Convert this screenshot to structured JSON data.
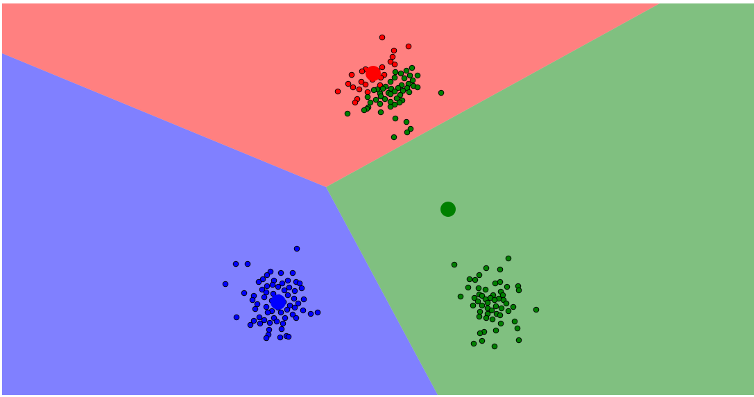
{
  "chart_data": {
    "type": "scatter",
    "title": "",
    "xlabel": "",
    "ylabel": "",
    "grid": false,
    "legend": "none",
    "axes_visible": false,
    "xlim": [
      0,
      1084
    ],
    "ylim": [
      -565,
      0
    ],
    "region_colors": {
      "red": "#ff8080",
      "green": "#80c080",
      "blue": "#8080ff"
    },
    "regions": [
      {
        "name": "red",
        "polygon": [
          [
            0,
            0
          ],
          [
            948,
            0
          ],
          [
            467,
            -265
          ],
          [
            0,
            -72
          ]
        ]
      },
      {
        "name": "green",
        "polygon": [
          [
            948,
            0
          ],
          [
            1084,
            0
          ],
          [
            1084,
            -565
          ],
          [
            628,
            -565
          ],
          [
            467,
            -265
          ]
        ]
      },
      {
        "name": "blue",
        "polygon": [
          [
            0,
            -72
          ],
          [
            467,
            -265
          ],
          [
            628,
            -565
          ],
          [
            0,
            -565
          ]
        ]
      }
    ],
    "centroids": [
      {
        "cluster": "red",
        "color": "#ff0000",
        "x": 535,
        "y": -101
      },
      {
        "cluster": "green",
        "color": "#008000",
        "x": 643,
        "y": -297
      },
      {
        "cluster": "blue",
        "color": "#0000ff",
        "x": 398,
        "y": -431
      }
    ],
    "series": [
      {
        "cluster": "red",
        "color": "#ff0000",
        "points": [
          [
            548,
            -49
          ],
          [
            586,
            -62
          ],
          [
            565,
            -68
          ],
          [
            563,
            -77
          ],
          [
            560,
            -84
          ],
          [
            566,
            -88
          ],
          [
            548,
            -92
          ],
          [
            524,
            -95
          ],
          [
            541,
            -97
          ],
          [
            519,
            -98
          ],
          [
            531,
            -101
          ],
          [
            504,
            -103
          ],
          [
            551,
            -103
          ],
          [
            546,
            -107
          ],
          [
            534,
            -110
          ],
          [
            518,
            -113
          ],
          [
            499,
            -116
          ],
          [
            524,
            -117
          ],
          [
            545,
            -118
          ],
          [
            506,
            -121
          ],
          [
            515,
            -124
          ],
          [
            484,
            -127
          ],
          [
            527,
            -128
          ],
          [
            512,
            -138
          ],
          [
            509,
            -143
          ]
        ]
      },
      {
        "cluster": "green",
        "color": "#008000",
        "points": [
          [
            591,
            -93
          ],
          [
            583,
            -97
          ],
          [
            567,
            -99
          ],
          [
            575,
            -101
          ],
          [
            588,
            -104
          ],
          [
            599,
            -104
          ],
          [
            566,
            -107
          ],
          [
            580,
            -108
          ],
          [
            592,
            -111
          ],
          [
            560,
            -113
          ],
          [
            586,
            -116
          ],
          [
            576,
            -118
          ],
          [
            593,
            -119
          ],
          [
            553,
            -120
          ],
          [
            599,
            -121
          ],
          [
            584,
            -122
          ],
          [
            571,
            -122
          ],
          [
            561,
            -123
          ],
          [
            549,
            -123
          ],
          [
            541,
            -124
          ],
          [
            536,
            -125
          ],
          [
            578,
            -126
          ],
          [
            566,
            -127
          ],
          [
            587,
            -128
          ],
          [
            633,
            -129
          ],
          [
            557,
            -129
          ],
          [
            545,
            -130
          ],
          [
            560,
            -131
          ],
          [
            574,
            -132
          ],
          [
            546,
            -134
          ],
          [
            527,
            -135
          ],
          [
            569,
            -137
          ],
          [
            552,
            -138
          ],
          [
            539,
            -139
          ],
          [
            577,
            -140
          ],
          [
            560,
            -142
          ],
          [
            531,
            -143
          ],
          [
            573,
            -143
          ],
          [
            545,
            -145
          ],
          [
            566,
            -146
          ],
          [
            560,
            -149
          ],
          [
            528,
            -150
          ],
          [
            526,
            -152
          ],
          [
            522,
            -154
          ],
          [
            546,
            -157
          ],
          [
            498,
            -159
          ],
          [
            567,
            -166
          ],
          [
            583,
            -171
          ],
          [
            589,
            -181
          ],
          [
            584,
            -186
          ],
          [
            565,
            -193
          ],
          [
            730,
            -368
          ],
          [
            652,
            -377
          ],
          [
            698,
            -382
          ],
          [
            718,
            -384
          ],
          [
            688,
            -392
          ],
          [
            674,
            -398
          ],
          [
            682,
            -399
          ],
          [
            718,
            -402
          ],
          [
            711,
            -404
          ],
          [
            744,
            -408
          ],
          [
            728,
            -409
          ],
          [
            672,
            -410
          ],
          [
            687,
            -411
          ],
          [
            697,
            -413
          ],
          [
            745,
            -414
          ],
          [
            719,
            -416
          ],
          [
            688,
            -420
          ],
          [
            708,
            -421
          ],
          [
            722,
            -421
          ],
          [
            661,
            -423
          ],
          [
            692,
            -422
          ],
          [
            681,
            -425
          ],
          [
            704,
            -425
          ],
          [
            716,
            -426
          ],
          [
            697,
            -427
          ],
          [
            710,
            -428
          ],
          [
            723,
            -428
          ],
          [
            686,
            -430
          ],
          [
            700,
            -432
          ],
          [
            727,
            -433
          ],
          [
            679,
            -436
          ],
          [
            692,
            -436
          ],
          [
            712,
            -437
          ],
          [
            737,
            -438
          ],
          [
            700,
            -440
          ],
          [
            720,
            -440
          ],
          [
            770,
            -442
          ],
          [
            706,
            -443
          ],
          [
            730,
            -444
          ],
          [
            689,
            -445
          ],
          [
            700,
            -448
          ],
          [
            713,
            -448
          ],
          [
            718,
            -450
          ],
          [
            688,
            -452
          ],
          [
            698,
            -454
          ],
          [
            707,
            -456
          ],
          [
            739,
            -459
          ],
          [
            719,
            -462
          ],
          [
            743,
            -469
          ],
          [
            712,
            -472
          ],
          [
            695,
            -474
          ],
          [
            689,
            -476
          ],
          [
            745,
            -486
          ],
          [
            692,
            -487
          ],
          [
            680,
            -491
          ],
          [
            710,
            -495
          ]
        ]
      },
      {
        "cluster": "blue",
        "color": "#0000ff",
        "points": [
          [
            425,
            -354
          ],
          [
            337,
            -376
          ],
          [
            354,
            -376
          ],
          [
            387,
            -387
          ],
          [
            402,
            -389
          ],
          [
            419,
            -389
          ],
          [
            382,
            -392
          ],
          [
            376,
            -398
          ],
          [
            392,
            -400
          ],
          [
            412,
            -400
          ],
          [
            370,
            -402
          ],
          [
            424,
            -402
          ],
          [
            404,
            -404
          ],
          [
            429,
            -404
          ],
          [
            322,
            -405
          ],
          [
            390,
            -406
          ],
          [
            382,
            -408
          ],
          [
            398,
            -409
          ],
          [
            414,
            -410
          ],
          [
            432,
            -411
          ],
          [
            375,
            -413
          ],
          [
            407,
            -414
          ],
          [
            422,
            -415
          ],
          [
            349,
            -418
          ],
          [
            381,
            -417
          ],
          [
            391,
            -419
          ],
          [
            412,
            -421
          ],
          [
            363,
            -422
          ],
          [
            378,
            -424
          ],
          [
            399,
            -424
          ],
          [
            421,
            -426
          ],
          [
            435,
            -427
          ],
          [
            361,
            -428
          ],
          [
            389,
            -429
          ],
          [
            406,
            -431
          ],
          [
            427,
            -433
          ],
          [
            368,
            -434
          ],
          [
            396,
            -435
          ],
          [
            415,
            -436
          ],
          [
            381,
            -438
          ],
          [
            398,
            -439
          ],
          [
            422,
            -439
          ],
          [
            365,
            -441
          ],
          [
            411,
            -442
          ],
          [
            434,
            -443
          ],
          [
            389,
            -444
          ],
          [
            402,
            -446
          ],
          [
            455,
            -446
          ],
          [
            383,
            -446
          ],
          [
            445,
            -448
          ],
          [
            419,
            -449
          ],
          [
            338,
            -453
          ],
          [
            371,
            -453
          ],
          [
            392,
            -454
          ],
          [
            408,
            -454
          ],
          [
            424,
            -454
          ],
          [
            378,
            -457
          ],
          [
            363,
            -458
          ],
          [
            396,
            -459
          ],
          [
            386,
            -461
          ],
          [
            405,
            -462
          ],
          [
            372,
            -462
          ],
          [
            358,
            -464
          ],
          [
            403,
            -470
          ],
          [
            385,
            -471
          ],
          [
            384,
            -478
          ],
          [
            410,
            -480
          ],
          [
            401,
            -482
          ],
          [
            413,
            -481
          ],
          [
            381,
            -483
          ]
        ]
      }
    ]
  }
}
